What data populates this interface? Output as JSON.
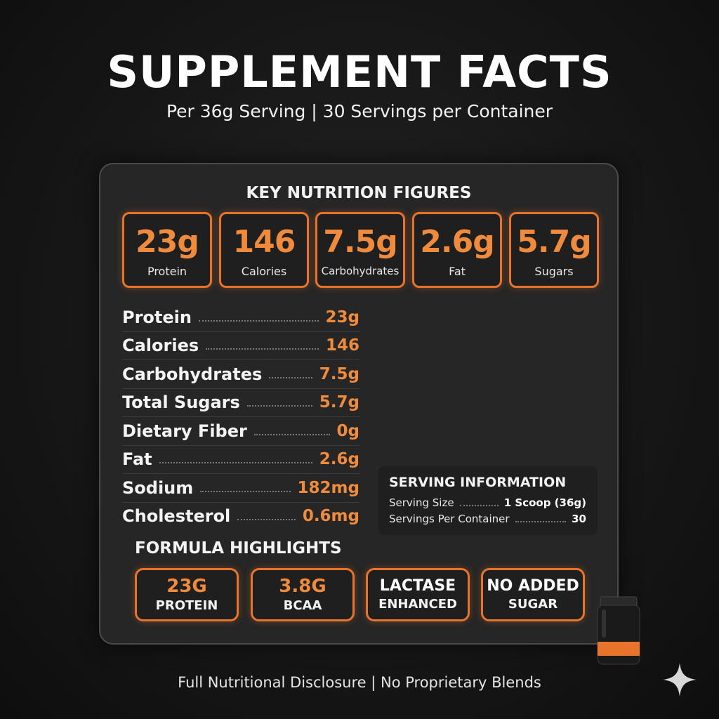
{
  "header": {
    "title": "SUPPLEMENT FACTS",
    "subtitle": "Per 36g Serving | 30 Servings per Container"
  },
  "key_figures": {
    "heading": "KEY NUTRITION FIGURES",
    "items": [
      {
        "value": "23g",
        "label": "Protein"
      },
      {
        "value": "146",
        "label": "Calories"
      },
      {
        "value": "7.5g",
        "label": "Carbohydrates"
      },
      {
        "value": "2.6g",
        "label": "Fat"
      },
      {
        "value": "5.7g",
        "label": "Sugars"
      }
    ]
  },
  "nutrients": [
    {
      "name": "Protein",
      "value": "23g"
    },
    {
      "name": "Calories",
      "value": "146"
    },
    {
      "name": "Carbohydrates",
      "value": "7.5g"
    },
    {
      "name": "Total Sugars",
      "value": "5.7g"
    },
    {
      "name": "Dietary Fiber",
      "value": "0g"
    },
    {
      "name": "Fat",
      "value": "2.6g"
    },
    {
      "name": "Sodium",
      "value": "182mg"
    },
    {
      "name": "Cholesterol",
      "value": "0.6mg"
    }
  ],
  "serving_info": {
    "title": "SERVING INFORMATION",
    "rows": [
      {
        "label": "Serving Size",
        "value": "1 Scoop (36g)"
      },
      {
        "label": "Servings Per Container",
        "value": "30"
      }
    ]
  },
  "formula": {
    "heading": "FORMULA HIGHLIGHTS",
    "items": [
      {
        "top": "23G",
        "bottom": "PROTEIN"
      },
      {
        "top": "3.8G",
        "bottom": "BCAA"
      },
      {
        "top": "LACTASE",
        "bottom": "ENHANCED"
      },
      {
        "top": "NO ADDED",
        "bottom": "SUGAR"
      }
    ]
  },
  "footer": {
    "text": "Full Nutritional Disclosure | No Proprietary Blends"
  },
  "colors": {
    "accent": "#f08a3c",
    "border_accent": "#e8742c",
    "background": "#161616",
    "panel": "#262626"
  },
  "icons": {
    "product": "supplement-tub-icon",
    "corner": "sparkle-icon"
  }
}
